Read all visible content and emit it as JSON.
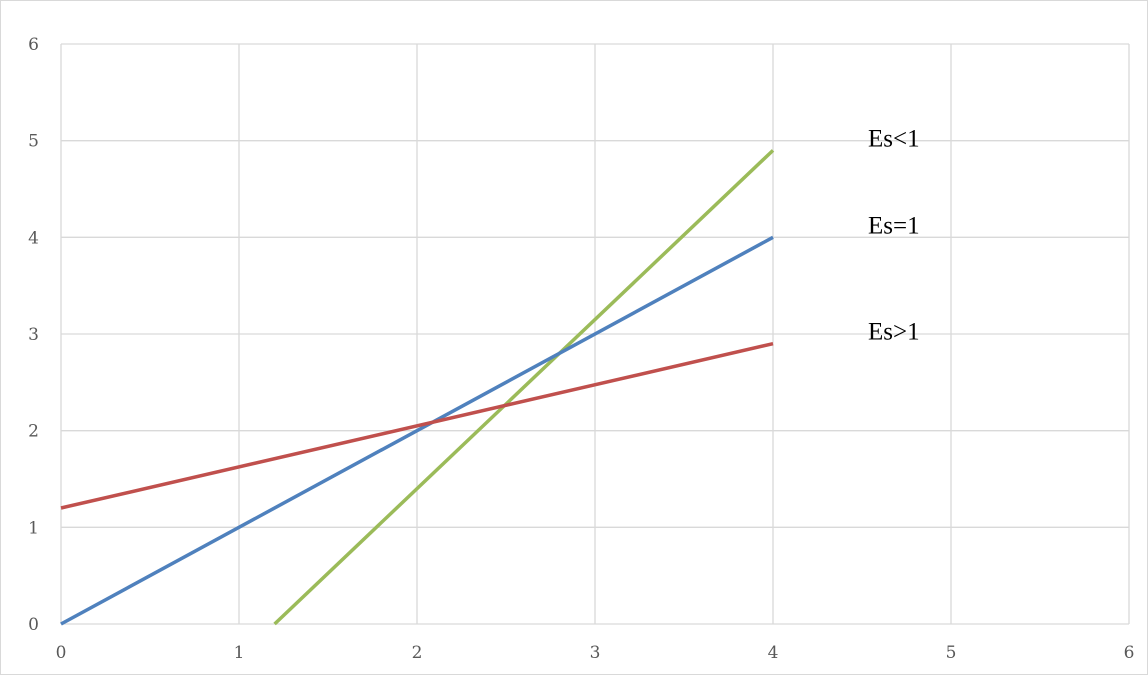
{
  "chart_data": {
    "type": "line",
    "title": "",
    "xlabel": "",
    "ylabel": "",
    "xlim": [
      0,
      6
    ],
    "ylim": [
      0,
      6
    ],
    "x_ticks": [
      "0",
      "1",
      "2",
      "3",
      "4",
      "5",
      "6"
    ],
    "y_ticks": [
      "0",
      "1",
      "2",
      "3",
      "4",
      "5",
      "6"
    ],
    "grid": true,
    "legend": "none",
    "series": [
      {
        "name": "Es<1",
        "color": "#9BBB59",
        "points": [
          [
            1.2,
            0
          ],
          [
            4,
            4.9
          ]
        ]
      },
      {
        "name": "Es=1",
        "color": "#4F81BD",
        "points": [
          [
            0,
            0
          ],
          [
            4,
            4
          ]
        ]
      },
      {
        "name": "Es>1",
        "color": "#C0504D",
        "points": [
          [
            0,
            1.2
          ],
          [
            4,
            2.9
          ]
        ]
      }
    ]
  }
}
